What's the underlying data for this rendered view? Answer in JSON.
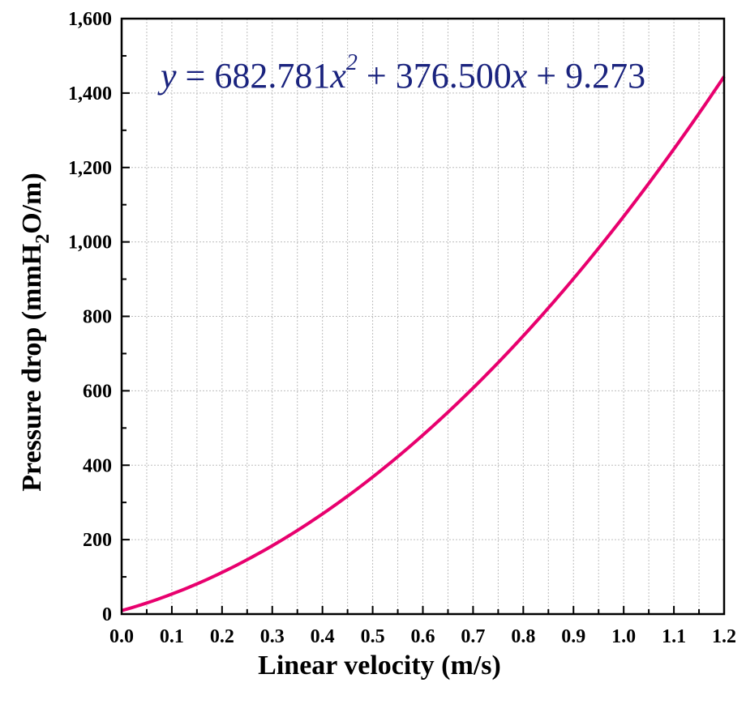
{
  "chart_data": {
    "type": "line",
    "title": "",
    "xlabel": "Linear velocity (m/s)",
    "ylabel": {
      "pre": "Pressure drop (mmH",
      "sub": "2",
      "post": "O/m)"
    },
    "xlim": [
      0,
      1.2
    ],
    "ylim": [
      0,
      1600
    ],
    "x_ticks": [
      "0.0",
      "0.1",
      "0.2",
      "0.3",
      "0.4",
      "0.5",
      "0.6",
      "0.7",
      "0.8",
      "0.9",
      "1.0",
      "1.1",
      "1.2"
    ],
    "y_ticks": [
      "0",
      "200",
      "400",
      "600",
      "800",
      "1,000",
      "1,200",
      "1,400",
      "1,600"
    ],
    "grid": true,
    "series": [
      {
        "color": "#e8006e",
        "fit": {
          "a": 682.781,
          "b": 376.5,
          "c": 9.273
        },
        "x": [
          0.0,
          0.1,
          0.2,
          0.3,
          0.4,
          0.5,
          0.6,
          0.7,
          0.8,
          0.9,
          1.0,
          1.1,
          1.2
        ],
        "y": [
          9.273,
          53.751,
          111.885,
          183.675,
          269.123,
          368.228,
          480.99,
          607.408,
          747.483,
          901.214,
          1068.554,
          1249.649,
          1444.4
        ]
      }
    ],
    "annotation": {
      "y_var": "y",
      "eq": " = 682.781",
      "x_var1": "x",
      "exp": "2",
      "mid": " + 376.500",
      "x_var2": "x",
      "tail": " + 9.273",
      "color": "#1a237e"
    }
  }
}
